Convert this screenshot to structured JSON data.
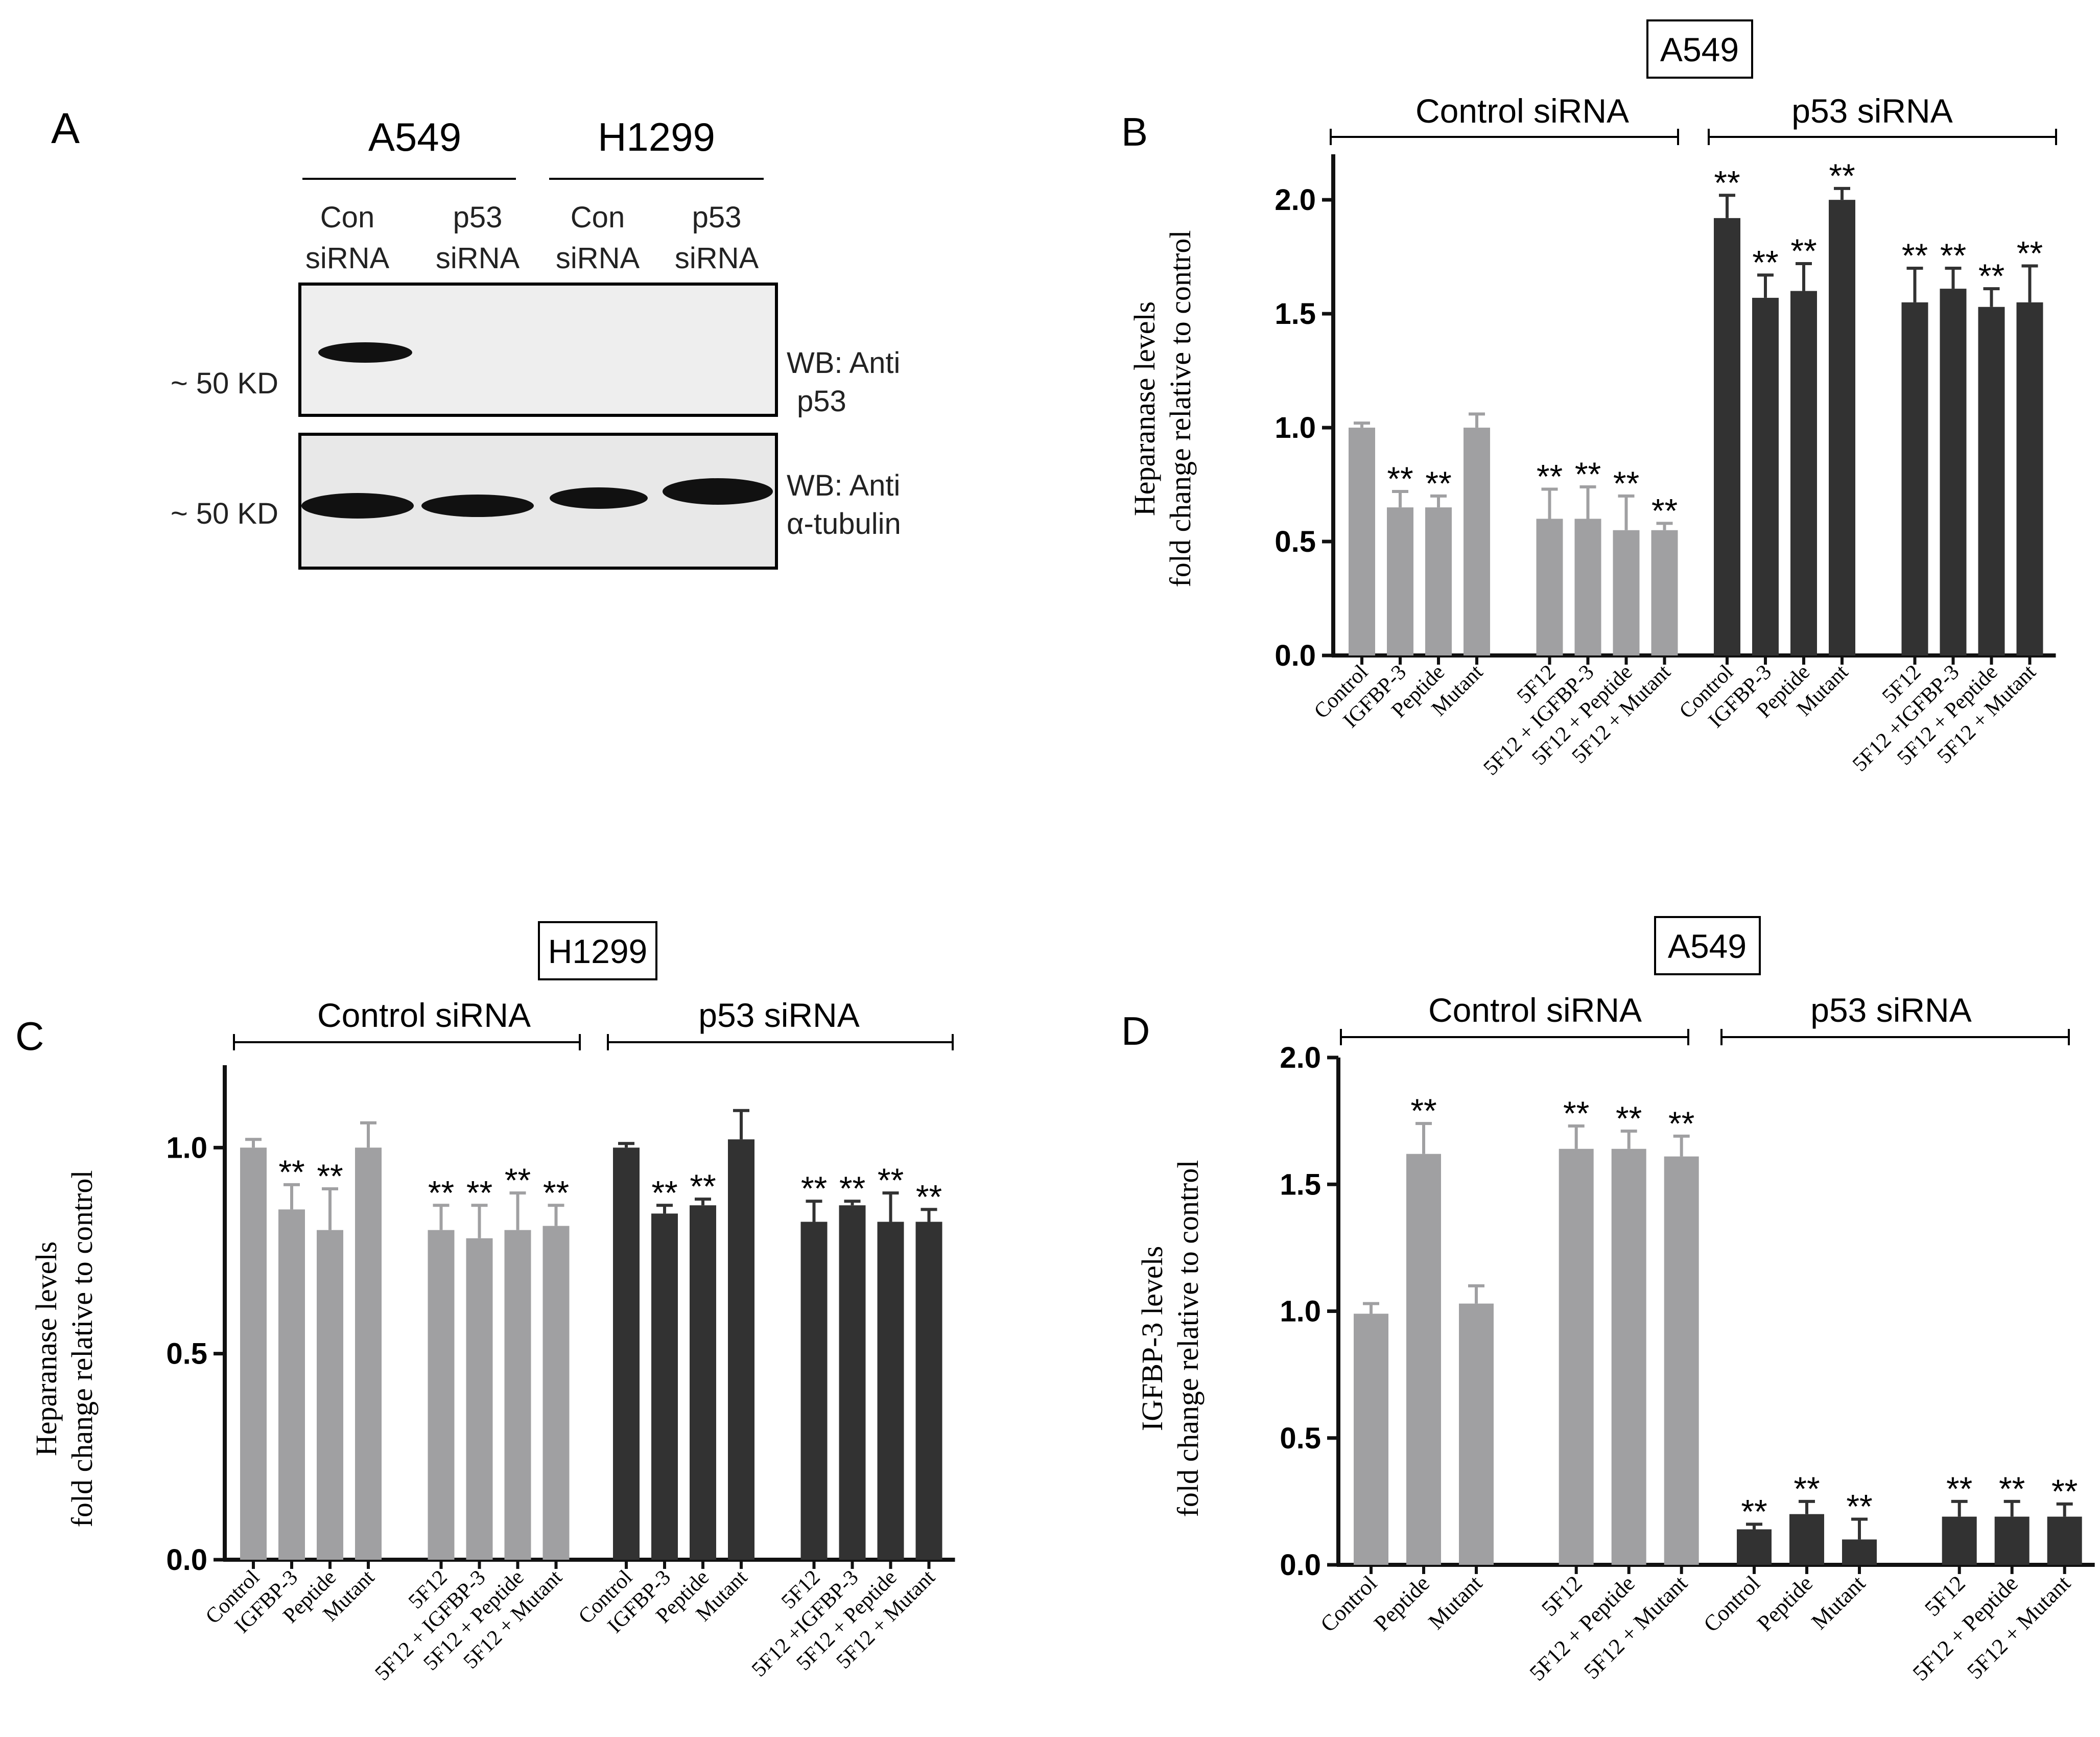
{
  "colors": {
    "light": "#a0a0a2",
    "dark": "#323232",
    "axis": "#111111",
    "blot_bg": "#ececec",
    "band": "#111111"
  },
  "panelA": {
    "label": "A",
    "cell_lines": [
      "A549",
      "H1299"
    ],
    "lanes": [
      {
        "top": "Con",
        "bottom": "siRNA"
      },
      {
        "top": "p53",
        "bottom": "siRNA"
      },
      {
        "top": "Con",
        "bottom": "siRNA"
      },
      {
        "top": "p53",
        "bottom": "siRNA"
      }
    ],
    "blots": [
      {
        "mw": "~ 50 KD",
        "wb_line1": "WB: Anti",
        "wb_line2": "p53",
        "band_intensity": [
          1,
          0,
          0,
          0
        ]
      },
      {
        "mw": "~ 50 KD",
        "wb_line1": "WB: Anti",
        "wb_line2": "α-tubulin",
        "band_intensity": [
          1,
          1,
          1,
          1
        ]
      }
    ]
  },
  "chart_data": [
    {
      "panel": "B",
      "type": "bar",
      "cell_line": "A549",
      "group_labels": [
        "Control siRNA",
        "p53 siRNA"
      ],
      "ylabel_line1": "Heparanase levels",
      "ylabel_line2": "fold change relative to control",
      "ylim": [
        0,
        2.2
      ],
      "yticks": [
        0.0,
        0.5,
        1.0,
        1.5,
        2.0
      ],
      "ytick_labels": [
        "0.0",
        "0.5",
        "1.0",
        "1.5",
        "2.0"
      ],
      "series": [
        {
          "name": "Control siRNA",
          "color": "light",
          "categories": [
            "Control",
            "IGFBP-3",
            "Peptide",
            "Mutant",
            "5F12",
            "5F12 + IGFBP-3",
            "5F12 + Peptide",
            "5F12 + Mutant"
          ],
          "values": [
            1.0,
            0.65,
            0.65,
            1.0,
            0.6,
            0.6,
            0.55,
            0.55
          ],
          "errors": [
            0.02,
            0.07,
            0.05,
            0.06,
            0.13,
            0.14,
            0.15,
            0.03
          ],
          "sig": [
            "",
            "**",
            "**",
            "",
            "**",
            "**",
            "**",
            "**"
          ]
        },
        {
          "name": "p53 siRNA",
          "color": "dark",
          "categories": [
            "Control",
            "IGFBP-3",
            "Peptide",
            "Mutant",
            "5F12",
            "5F12 +IGFBP-3",
            "5F12 + Peptide",
            "5F12 + Mutant"
          ],
          "values": [
            1.92,
            1.57,
            1.6,
            2.0,
            1.55,
            1.61,
            1.53,
            1.55
          ],
          "errors": [
            0.1,
            0.1,
            0.12,
            0.05,
            0.15,
            0.09,
            0.08,
            0.16
          ],
          "sig": [
            "**",
            "**",
            "**",
            "**",
            "**",
            "**",
            "**",
            "**"
          ]
        }
      ]
    },
    {
      "panel": "C",
      "type": "bar",
      "cell_line": "H1299",
      "group_labels": [
        "Control siRNA",
        "p53 siRNA"
      ],
      "ylabel_line1": "Heparanase levels",
      "ylabel_line2": "fold change relative to control",
      "ylim": [
        0,
        1.2
      ],
      "yticks": [
        0.0,
        0.5,
        1.0
      ],
      "ytick_labels": [
        "0.0",
        "0.5",
        "1.0"
      ],
      "series": [
        {
          "name": "Control siRNA",
          "color": "light",
          "categories": [
            "Control",
            "IGFBP-3",
            "Peptide",
            "Mutant",
            "5F12",
            "5F12 + IGFBP-3",
            "5F12 + Peptide",
            "5F12 + Mutant"
          ],
          "values": [
            1.0,
            0.85,
            0.8,
            1.0,
            0.8,
            0.78,
            0.8,
            0.81
          ],
          "errors": [
            0.02,
            0.06,
            0.1,
            0.06,
            0.06,
            0.08,
            0.09,
            0.05
          ],
          "sig": [
            "",
            "**",
            "**",
            "",
            "**",
            "**",
            "**",
            "**"
          ]
        },
        {
          "name": "p53 siRNA",
          "color": "dark",
          "categories": [
            "Control",
            "IGFBP-3",
            "Peptide",
            "Mutant",
            "5F12",
            "5F12 +IGFBP-3",
            "5F12 + Peptide",
            "5F12 + Mutant"
          ],
          "values": [
            1.0,
            0.84,
            0.86,
            1.02,
            0.82,
            0.86,
            0.82,
            0.82
          ],
          "errors": [
            0.01,
            0.02,
            0.015,
            0.07,
            0.05,
            0.01,
            0.07,
            0.03
          ],
          "sig": [
            "",
            "**",
            "**",
            "",
            "**",
            "**",
            "**",
            "**"
          ]
        }
      ]
    },
    {
      "panel": "D",
      "type": "bar",
      "cell_line": "A549",
      "group_labels": [
        "Control siRNA",
        "p53 siRNA"
      ],
      "ylabel_line1": "IGFBP-3 levels",
      "ylabel_line2": "fold change relative to control",
      "ylim": [
        0,
        2.0
      ],
      "yticks": [
        0.0,
        0.5,
        1.0,
        1.5,
        2.0
      ],
      "ytick_labels": [
        "0.0",
        "0.5",
        "1.0",
        "1.5",
        "2.0"
      ],
      "series": [
        {
          "name": "Control siRNA",
          "color": "light",
          "categories": [
            "Control",
            "Peptide",
            "Mutant",
            "5F12",
            "5F12 + Peptide",
            "5F12 + Mutant"
          ],
          "values": [
            0.99,
            1.62,
            1.03,
            1.64,
            1.64,
            1.61
          ],
          "errors": [
            0.04,
            0.12,
            0.07,
            0.09,
            0.07,
            0.08
          ],
          "sig": [
            "",
            "**",
            "",
            "**",
            "**",
            "**"
          ]
        },
        {
          "name": "p53 siRNA",
          "color": "dark",
          "categories": [
            "Control",
            "Peptide",
            "Mutant",
            "5F12",
            "5F12 + Peptide",
            "5F12 + Mutant"
          ],
          "values": [
            0.14,
            0.2,
            0.1,
            0.19,
            0.19,
            0.19
          ],
          "errors": [
            0.02,
            0.05,
            0.08,
            0.06,
            0.06,
            0.05
          ],
          "sig": [
            "**",
            "**",
            "**",
            "**",
            "**",
            "**"
          ]
        }
      ]
    }
  ]
}
